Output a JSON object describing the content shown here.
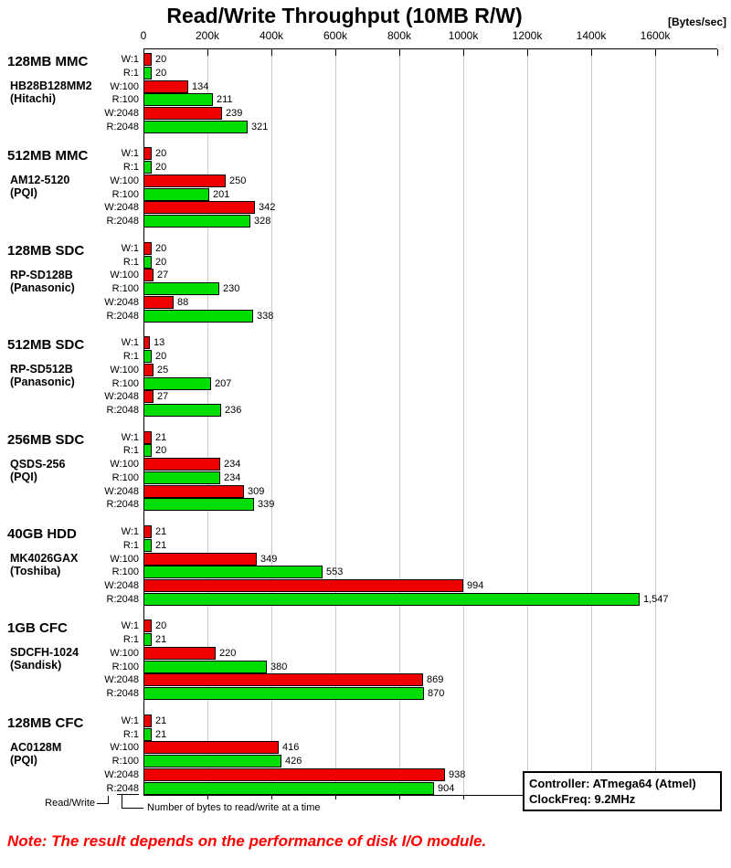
{
  "title": "Read/Write Throughput (10MB R/W)",
  "unit_label": "[Bytes/sec]",
  "note": "Note: The result depends on the performance of disk I/O module.",
  "note_color": "#ff0000",
  "info_box": {
    "line1": "Controller: ATmega64 (Atmel)",
    "line2": "ClockFreq: 9.2MHz"
  },
  "legend": {
    "read_write": "Read/Write",
    "bytes_note": "Number of bytes to read/write at a time"
  },
  "chart_data": {
    "type": "bar",
    "orientation": "horizontal",
    "title": "Read/Write Throughput (10MB R/W)",
    "xlabel": "[Bytes/sec]",
    "xlim_k": [
      0,
      1795
    ],
    "grid": true,
    "axis_ticks": {
      "values_k": [
        0,
        200,
        400,
        600,
        800,
        1000,
        1200,
        1400,
        1600
      ],
      "labels": [
        "0",
        "200k",
        "400k",
        "600k",
        "800k",
        "1000k",
        "1200k",
        "1400k",
        "1600k"
      ]
    },
    "bar_labels": [
      "W:1",
      "R:1",
      "W:100",
      "R:100",
      "W:2048",
      "R:2048"
    ],
    "colors": {
      "write": "#ee0000",
      "read": "#00dd00",
      "gridline": "#c8c8c8"
    },
    "groups": [
      {
        "size": "128MB MMC",
        "model": "HB28B128MM2",
        "vendor": "(Hitachi)",
        "values_k": [
          20,
          20,
          134,
          211,
          239,
          321
        ],
        "value_labels": [
          "20",
          "20",
          "134",
          "211",
          "239",
          "321"
        ]
      },
      {
        "size": "512MB MMC",
        "model": "AM12-5120",
        "vendor": "(PQI)",
        "values_k": [
          20,
          20,
          250,
          201,
          342,
          328
        ],
        "value_labels": [
          "20",
          "20",
          "250",
          "201",
          "342",
          "328"
        ]
      },
      {
        "size": "128MB SDC",
        "model": "RP-SD128B",
        "vendor": "(Panasonic)",
        "values_k": [
          20,
          20,
          27,
          230,
          88,
          338
        ],
        "value_labels": [
          "20",
          "20",
          "27",
          "230",
          "88",
          "338"
        ]
      },
      {
        "size": "512MB SDC",
        "model": "RP-SD512B",
        "vendor": "(Panasonic)",
        "values_k": [
          13,
          20,
          25,
          207,
          27,
          236
        ],
        "value_labels": [
          "13",
          "20",
          "25",
          "207",
          "27",
          "236"
        ]
      },
      {
        "size": "256MB SDC",
        "model": "QSDS-256",
        "vendor": "(PQI)",
        "values_k": [
          21,
          20,
          234,
          234,
          309,
          339
        ],
        "value_labels": [
          "21",
          "20",
          "234",
          "234",
          "309",
          "339"
        ]
      },
      {
        "size": "40GB HDD",
        "model": "MK4026GAX",
        "vendor": "(Toshiba)",
        "values_k": [
          21,
          21,
          349,
          553,
          994,
          1547
        ],
        "value_labels": [
          "21",
          "21",
          "349",
          "553",
          "994",
          "1,547"
        ]
      },
      {
        "size": "1GB CFC",
        "model": "SDCFH-1024",
        "vendor": "(Sandisk)",
        "values_k": [
          20,
          21,
          220,
          380,
          869,
          870
        ],
        "value_labels": [
          "20",
          "21",
          "220",
          "380",
          "869",
          "870"
        ]
      },
      {
        "size": "128MB CFC",
        "model": "AC0128M",
        "vendor": "(PQI)",
        "values_k": [
          21,
          21,
          416,
          426,
          938,
          904
        ],
        "value_labels": [
          "21",
          "21",
          "416",
          "426",
          "938",
          "904"
        ]
      }
    ]
  }
}
